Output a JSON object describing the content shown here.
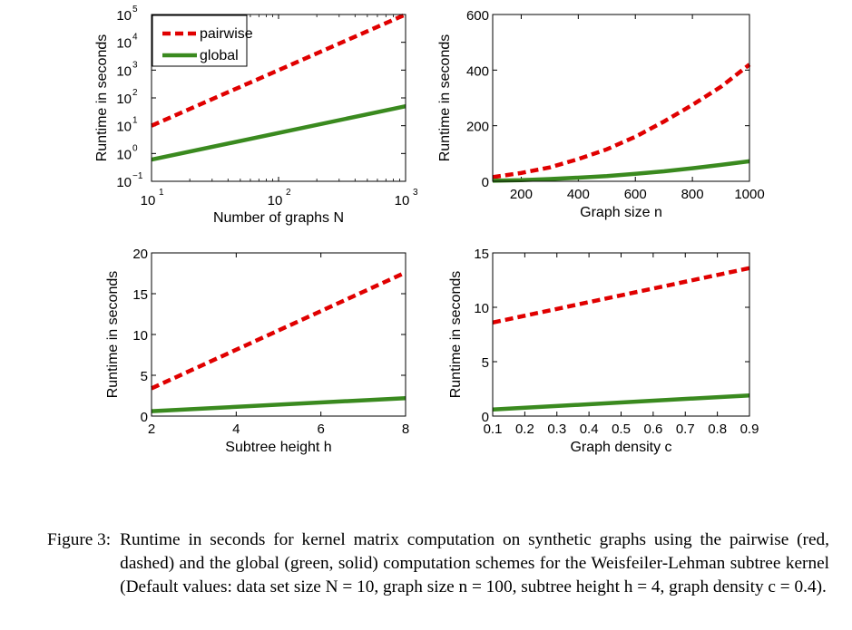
{
  "chart_data": [
    {
      "type": "line",
      "xlabel": "Number of graphs N",
      "ylabel": "Runtime in seconds",
      "xscale": "log",
      "yscale": "log",
      "xlim": [
        10,
        1000
      ],
      "ylim": [
        0.1,
        100000
      ],
      "xticks": [
        10,
        100,
        1000
      ],
      "xtick_labels": [
        {
          "base": "10",
          "exp": "1"
        },
        {
          "base": "10",
          "exp": "2"
        },
        {
          "base": "10",
          "exp": "3"
        }
      ],
      "yticks": [
        0.1,
        1,
        10,
        100,
        1000,
        10000,
        100000
      ],
      "ytick_labels": [
        {
          "base": "10",
          "exp": "−1"
        },
        {
          "base": "10",
          "exp": "0"
        },
        {
          "base": "10",
          "exp": "1"
        },
        {
          "base": "10",
          "exp": "2"
        },
        {
          "base": "10",
          "exp": "3"
        },
        {
          "base": "10",
          "exp": "4"
        },
        {
          "base": "10",
          "exp": "5"
        }
      ],
      "legend": {
        "position": "top-left",
        "entries": [
          "pairwise",
          "global"
        ]
      },
      "series": [
        {
          "name": "pairwise",
          "color": "#e00000",
          "style": "dashed",
          "x": [
            10,
            1000
          ],
          "y": [
            10,
            100000
          ]
        },
        {
          "name": "global",
          "color": "#3a8a1f",
          "style": "solid",
          "x": [
            10,
            1000
          ],
          "y": [
            0.6,
            50
          ]
        }
      ]
    },
    {
      "type": "line",
      "xlabel": "Graph size n",
      "ylabel": "Runtime in seconds",
      "xlim": [
        100,
        1000
      ],
      "ylim": [
        0,
        600
      ],
      "xticks": [
        200,
        400,
        600,
        800,
        1000
      ],
      "xtick_labels": [
        "200",
        "400",
        "600",
        "800",
        "1000"
      ],
      "yticks": [
        0,
        200,
        400,
        600
      ],
      "ytick_labels": [
        "0",
        "200",
        "400",
        "600"
      ],
      "series": [
        {
          "name": "pairwise",
          "color": "#e00000",
          "style": "dashed",
          "x": [
            100,
            200,
            300,
            400,
            500,
            600,
            700,
            800,
            900,
            1000
          ],
          "y": [
            15,
            30,
            50,
            80,
            115,
            160,
            215,
            275,
            340,
            420
          ]
        },
        {
          "name": "global",
          "color": "#3a8a1f",
          "style": "solid",
          "x": [
            100,
            200,
            300,
            400,
            500,
            600,
            700,
            800,
            900,
            1000
          ],
          "y": [
            2,
            4,
            8,
            13,
            19,
            27,
            36,
            47,
            59,
            72
          ]
        }
      ]
    },
    {
      "type": "line",
      "xlabel": "Subtree height h",
      "ylabel": "Runtime in seconds",
      "xlim": [
        2,
        8
      ],
      "ylim": [
        0,
        20
      ],
      "xticks": [
        2,
        4,
        6,
        8
      ],
      "xtick_labels": [
        "2",
        "4",
        "6",
        "8"
      ],
      "yticks": [
        0,
        5,
        10,
        15,
        20
      ],
      "ytick_labels": [
        "0",
        "5",
        "10",
        "15",
        "20"
      ],
      "series": [
        {
          "name": "pairwise",
          "color": "#e00000",
          "style": "dashed",
          "x": [
            2,
            8
          ],
          "y": [
            3.4,
            17.6
          ]
        },
        {
          "name": "global",
          "color": "#3a8a1f",
          "style": "solid",
          "x": [
            2,
            8
          ],
          "y": [
            0.6,
            2.2
          ]
        }
      ]
    },
    {
      "type": "line",
      "xlabel": "Graph density c",
      "ylabel": "Runtime in seconds",
      "xlim": [
        0.1,
        0.9
      ],
      "ylim": [
        0,
        15
      ],
      "xticks": [
        0.1,
        0.2,
        0.3,
        0.4,
        0.5,
        0.6,
        0.7,
        0.8,
        0.9
      ],
      "xtick_labels": [
        "0.1",
        "0.2",
        "0.3",
        "0.4",
        "0.5",
        "0.6",
        "0.7",
        "0.8",
        "0.9"
      ],
      "yticks": [
        0,
        5,
        10,
        15
      ],
      "ytick_labels": [
        "0",
        "5",
        "10",
        "15"
      ],
      "series": [
        {
          "name": "pairwise",
          "color": "#e00000",
          "style": "dashed",
          "x": [
            0.1,
            0.9
          ],
          "y": [
            8.6,
            13.6
          ]
        },
        {
          "name": "global",
          "color": "#3a8a1f",
          "style": "solid",
          "x": [
            0.1,
            0.9
          ],
          "y": [
            0.6,
            1.9
          ]
        }
      ]
    }
  ],
  "caption": {
    "label": "Figure 3:",
    "text": "Runtime in seconds for kernel matrix computation on synthetic graphs using the pairwise (red, dashed) and the global (green, solid) computation schemes for the Weisfeiler-Lehman subtree kernel (Default values: data set size N = 10, graph size n = 100, subtree height h = 4, graph density c = 0.4)."
  }
}
